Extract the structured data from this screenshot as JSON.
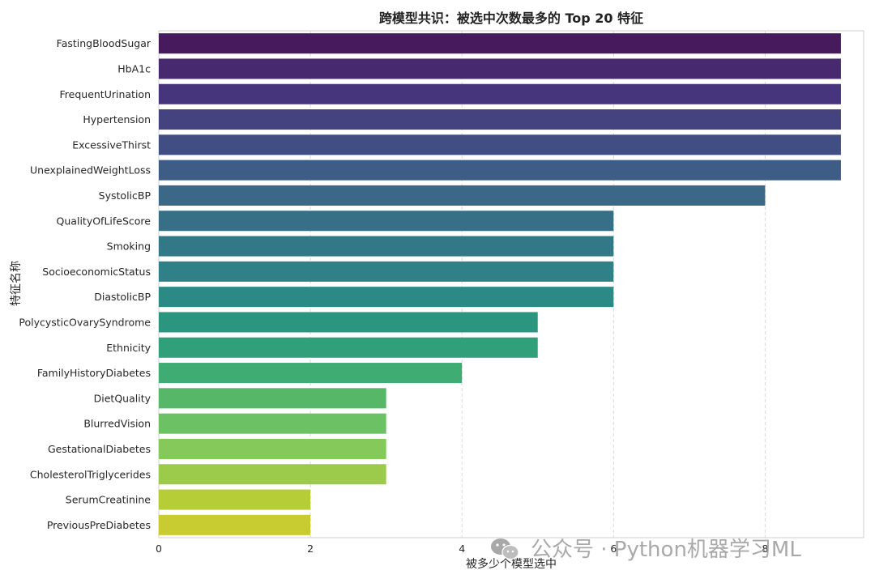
{
  "chart_data": {
    "type": "bar",
    "orientation": "horizontal",
    "title": "跨模型共识：被选中次数最多的 Top 20 特征",
    "xlabel": "被多少个模型选中",
    "ylabel": "特征名称",
    "xlim": [
      0,
      9.3
    ],
    "xticks": [
      0,
      2,
      4,
      6,
      8
    ],
    "grid": "x, dashed",
    "categories": [
      "FastingBloodSugar",
      "HbA1c",
      "FrequentUrination",
      "Hypertension",
      "ExcessiveThirst",
      "UnexplainedWeightLoss",
      "SystolicBP",
      "QualityOfLifeScore",
      "Smoking",
      "SocioeconomicStatus",
      "DiastolicBP",
      "PolycysticOvarySyndrome",
      "Ethnicity",
      "FamilyHistoryDiabetes",
      "DietQuality",
      "BlurredVision",
      "GestationalDiabetes",
      "CholesterolTriglycerides",
      "SerumCreatinine",
      "PreviousPreDiabetes"
    ],
    "values": [
      9,
      9,
      9,
      9,
      9,
      9,
      8,
      6,
      6,
      6,
      6,
      5,
      5,
      4,
      3,
      3,
      3,
      3,
      2,
      2
    ],
    "colors": [
      "#471a5e",
      "#472970",
      "#46357c",
      "#44427f",
      "#414e83",
      "#3d5c86",
      "#3a6886",
      "#366f86",
      "#337886",
      "#2f8187",
      "#2c8a84",
      "#2c9580",
      "#30a07b",
      "#3fad73",
      "#56b769",
      "#6bc163",
      "#85c95a",
      "#9ccb4c",
      "#b7cd38",
      "#c8cc30"
    ]
  },
  "watermark": {
    "icon": "wechat-icon",
    "text": "公众号 · Python机器学习ML"
  }
}
